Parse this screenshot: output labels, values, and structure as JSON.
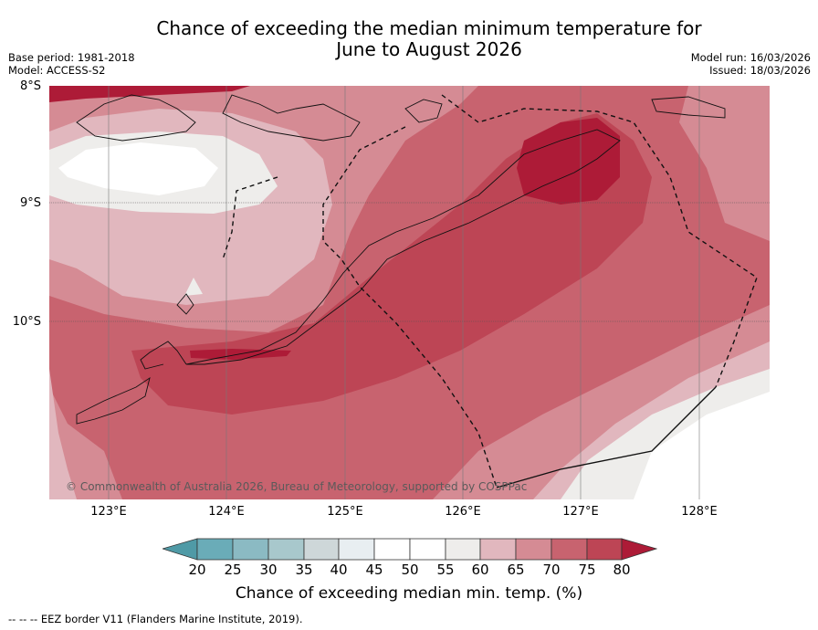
{
  "title": {
    "line1": "Chance of exceeding the median minimum temperature for",
    "line2": "June to August 2026"
  },
  "meta": {
    "base_period": "Base period: 1981-2018",
    "model": "Model: ACCESS-S2",
    "model_run": "Model run: 16/03/2026",
    "issued": "Issued: 18/03/2026"
  },
  "axes": {
    "lat_labels": [
      "8°S",
      "9°S",
      "10°S"
    ],
    "lon_labels": [
      "123°E",
      "124°E",
      "125°E",
      "126°E",
      "127°E",
      "128°E"
    ]
  },
  "copyright": "© Commonwealth of Australia 2026, Bureau of Meteorology, supported by COSPPac",
  "colorbar": {
    "ticks": [
      "20",
      "25",
      "30",
      "35",
      "40",
      "45",
      "50",
      "55",
      "60",
      "65",
      "70",
      "75",
      "80"
    ],
    "colors": {
      "below20": "#4f9aa6",
      "c20_25": "#6aacb8",
      "c25_30": "#8bbac3",
      "c30_35": "#a8c8cc",
      "c35_40": "#ced7d9",
      "c40_45": "#e8eef1",
      "c45_50": "#ffffff",
      "c50_55": "#ffffff",
      "c55_60": "#eeedeb",
      "c60_65": "#e1b7be",
      "c65_70": "#d58b94",
      "c70_75": "#c8636f",
      "c75_80": "#bd4555",
      "above80": "#ad1b37"
    },
    "label": "Chance of exceeding median min. temp. (%)"
  },
  "footer": "--  --  -- EEZ border V11 (Flanders Marine Institute, 2019)."
}
